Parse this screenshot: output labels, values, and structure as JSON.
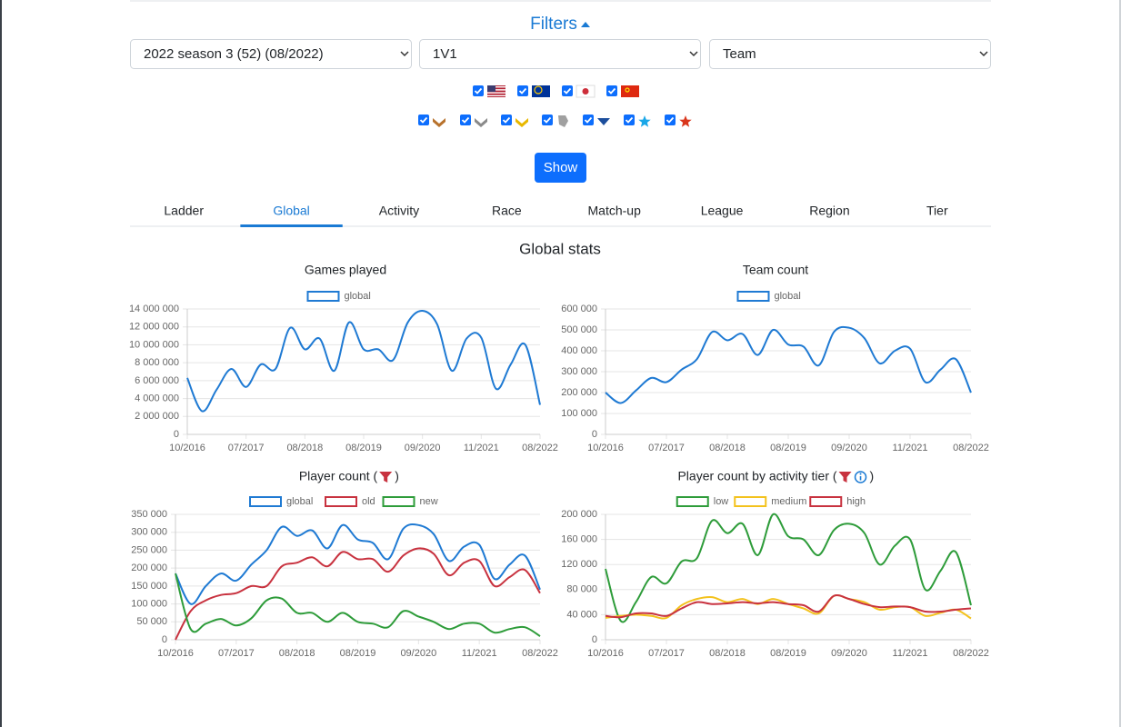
{
  "filters": {
    "title": "Filters",
    "season": "2022 season 3 (52) (08/2022)",
    "mode": "1V1",
    "team": "Team",
    "button": "Show"
  },
  "tabs": {
    "items": [
      "Ladder",
      "Global",
      "Activity",
      "Race",
      "Match-up",
      "League",
      "Region",
      "Tier"
    ],
    "active": 1
  },
  "heading": "Global stats",
  "chart_data": [
    {
      "type": "line",
      "title": "Games played",
      "categories": [
        "10/2016",
        null,
        null,
        null,
        "07/2017",
        null,
        null,
        null,
        "08/2018",
        null,
        null,
        null,
        "08/2019",
        null,
        null,
        null,
        "09/2020",
        null,
        null,
        null,
        "11/2021",
        null,
        null,
        null,
        "08/2022"
      ],
      "series": [
        {
          "name": "global",
          "color": "#1f7ad3",
          "values": [
            6300000,
            2600000,
            5000000,
            7300000,
            5300000,
            7800000,
            7300000,
            11900000,
            9500000,
            10700000,
            7100000,
            12500000,
            9500000,
            9500000,
            8300000,
            12500000,
            13800000,
            12300000,
            7100000,
            10700000,
            10800000,
            5100000,
            7800000,
            10000000,
            3300000
          ]
        }
      ],
      "ylim": [
        0,
        14000000
      ],
      "yticks": [
        0,
        {
          "value": 2000000,
          "label": "2 000 000"
        },
        {
          "value": 4000000,
          "label": "4 000 000"
        },
        {
          "value": 6000000,
          "label": "6 000 000"
        },
        {
          "value": 8000000,
          "label": "8 000 000"
        },
        {
          "value": 10000000,
          "label": "10 000 000"
        },
        {
          "value": 12000000,
          "label": "12 000 000"
        },
        {
          "value": 14000000,
          "label": "14 000 000"
        }
      ],
      "grid": true,
      "legend": "top"
    },
    {
      "type": "line",
      "title": "Team count",
      "categories": [
        "10/2016",
        null,
        null,
        null,
        "07/2017",
        null,
        null,
        null,
        "08/2018",
        null,
        null,
        null,
        "08/2019",
        null,
        null,
        null,
        "09/2020",
        null,
        null,
        null,
        "11/2021",
        null,
        null,
        null,
        "08/2022"
      ],
      "series": [
        {
          "name": "global",
          "color": "#1f7ad3",
          "values": [
            200000,
            150000,
            210000,
            270000,
            250000,
            310000,
            360000,
            490000,
            450000,
            480000,
            380000,
            500000,
            430000,
            420000,
            330000,
            490000,
            510000,
            460000,
            340000,
            400000,
            410000,
            250000,
            310000,
            360000,
            200000
          ]
        }
      ],
      "ylim": [
        0,
        600000
      ],
      "yticks": [
        0,
        {
          "value": 100000,
          "label": "100 000"
        },
        {
          "value": 200000,
          "label": "200 000"
        },
        {
          "value": 300000,
          "label": "300 000"
        },
        {
          "value": 400000,
          "label": "400 000"
        },
        {
          "value": 500000,
          "label": "500 000"
        },
        {
          "value": 600000,
          "label": "600 000"
        }
      ],
      "grid": true,
      "legend": "top"
    },
    {
      "type": "line",
      "title": "Player count (",
      "title_end": ")",
      "categories": [
        "10/2016",
        null,
        null,
        null,
        "07/2017",
        null,
        null,
        null,
        "08/2018",
        null,
        null,
        null,
        "08/2019",
        null,
        null,
        null,
        "09/2020",
        null,
        null,
        null,
        "11/2021",
        null,
        null,
        null,
        "08/2022"
      ],
      "series": [
        {
          "name": "global",
          "color": "#1f7ad3",
          "values": [
            185000,
            100000,
            150000,
            185000,
            165000,
            210000,
            250000,
            315000,
            290000,
            305000,
            255000,
            320000,
            280000,
            270000,
            225000,
            310000,
            320000,
            295000,
            220000,
            260000,
            265000,
            170000,
            210000,
            235000,
            140000
          ]
        },
        {
          "name": "old",
          "color": "#c8323f",
          "values": [
            0,
            80000,
            110000,
            125000,
            130000,
            150000,
            150000,
            205000,
            215000,
            230000,
            205000,
            245000,
            225000,
            225000,
            190000,
            235000,
            255000,
            240000,
            180000,
            215000,
            220000,
            150000,
            175000,
            195000,
            130000
          ]
        },
        {
          "name": "new",
          "color": "#2e9c3a",
          "values": [
            185000,
            30000,
            45000,
            58000,
            40000,
            60000,
            110000,
            115000,
            75000,
            75000,
            50000,
            75000,
            50000,
            45000,
            35000,
            80000,
            65000,
            50000,
            30000,
            45000,
            45000,
            20000,
            30000,
            35000,
            10000
          ]
        }
      ],
      "ylim": [
        0,
        350000
      ],
      "yticks": [
        0,
        {
          "value": 50000,
          "label": "50 000"
        },
        {
          "value": 100000,
          "label": "100 000"
        },
        {
          "value": 150000,
          "label": "150 000"
        },
        {
          "value": 200000,
          "label": "200 000"
        },
        {
          "value": 250000,
          "label": "250 000"
        },
        {
          "value": 300000,
          "label": "300 000"
        },
        {
          "value": 350000,
          "label": "350 000"
        }
      ],
      "grid": true,
      "legend": "top"
    },
    {
      "type": "line",
      "title": "Player count by activity tier (",
      "title_end": ")",
      "categories": [
        "10/2016",
        null,
        null,
        null,
        "07/2017",
        null,
        null,
        null,
        "08/2018",
        null,
        null,
        null,
        "08/2019",
        null,
        null,
        null,
        "09/2020",
        null,
        null,
        null,
        "11/2021",
        null,
        null,
        null,
        "08/2022"
      ],
      "series": [
        {
          "name": "low",
          "color": "#2e9c3a",
          "values": [
            113000,
            30000,
            60000,
            100000,
            90000,
            125000,
            130000,
            190000,
            170000,
            185000,
            135000,
            200000,
            165000,
            160000,
            135000,
            175000,
            185000,
            170000,
            120000,
            150000,
            160000,
            80000,
            110000,
            140000,
            55000
          ]
        },
        {
          "name": "medium",
          "color": "#f3c21d",
          "values": [
            35000,
            38000,
            40000,
            38000,
            35000,
            55000,
            65000,
            68000,
            60000,
            65000,
            57000,
            65000,
            57000,
            50000,
            42000,
            70000,
            65000,
            60000,
            48000,
            52000,
            52000,
            38000,
            43000,
            48000,
            34000
          ]
        },
        {
          "name": "high",
          "color": "#c8323f",
          "values": [
            38000,
            36000,
            42000,
            42000,
            38000,
            50000,
            60000,
            57000,
            58000,
            60000,
            58000,
            60000,
            57000,
            55000,
            45000,
            70000,
            65000,
            57000,
            52000,
            53000,
            52000,
            45000,
            45000,
            48000,
            50000
          ]
        }
      ],
      "ylim": [
        0,
        200000
      ],
      "yticks": [
        0,
        {
          "value": 40000,
          "label": "40 000"
        },
        {
          "value": 80000,
          "label": "80 000"
        },
        {
          "value": 120000,
          "label": "120 000"
        },
        {
          "value": 160000,
          "label": "160 000"
        },
        {
          "value": 200000,
          "label": "200 000"
        }
      ],
      "grid": true,
      "legend": "top"
    }
  ]
}
